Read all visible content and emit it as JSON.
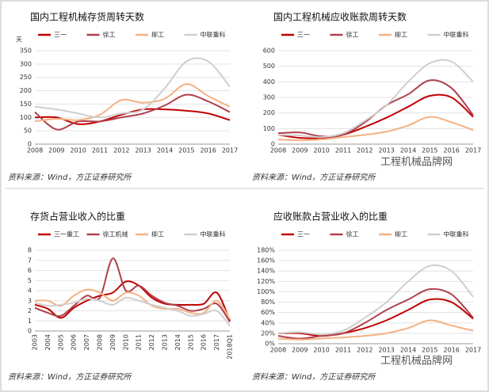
{
  "chart_data": [
    {
      "type": "line",
      "title": "国内工程机械存货周转天数",
      "y_label": "天",
      "categories": [
        "2008",
        "2009",
        "2010",
        "2011",
        "2012",
        "2013",
        "2014",
        "2015",
        "2016",
        "2017"
      ],
      "ylim": [
        0,
        350
      ],
      "yticks": [
        0,
        50,
        100,
        150,
        200,
        250,
        300,
        350
      ],
      "grid": true,
      "series": [
        {
          "name": "三一",
          "color": "#c00000",
          "values": [
            100,
            100,
            75,
            85,
            110,
            130,
            130,
            125,
            115,
            90
          ]
        },
        {
          "name": "徐工",
          "color": "#b0404c",
          "values": [
            120,
            55,
            85,
            85,
            100,
            115,
            145,
            185,
            160,
            120
          ]
        },
        {
          "name": "柳工",
          "color": "#f4b183",
          "values": [
            85,
            95,
            90,
            110,
            165,
            155,
            170,
            225,
            180,
            140
          ]
        },
        {
          "name": "中联重科",
          "color": "#d0cece",
          "values": [
            140,
            130,
            115,
            100,
            115,
            130,
            210,
            310,
            310,
            215
          ]
        }
      ]
    },
    {
      "type": "line",
      "title": "国内工程机械应收账款周转天数",
      "categories": [
        "2008",
        "2009",
        "2010",
        "2011",
        "2012",
        "2013",
        "2014",
        "2015",
        "2016",
        "2017"
      ],
      "ylim": [
        0,
        600
      ],
      "yticks": [
        0,
        100,
        200,
        300,
        400,
        500,
        600
      ],
      "grid": true,
      "series": [
        {
          "name": "三一",
          "color": "#c00000",
          "values": [
            60,
            40,
            40,
            60,
            110,
            170,
            240,
            310,
            300,
            175
          ]
        },
        {
          "name": "徐工",
          "color": "#b0404c",
          "values": [
            70,
            75,
            50,
            60,
            140,
            250,
            320,
            410,
            360,
            185
          ]
        },
        {
          "name": "柳工",
          "color": "#f4b183",
          "values": [
            30,
            25,
            30,
            45,
            60,
            80,
            120,
            175,
            140,
            90
          ]
        },
        {
          "name": "中联重科",
          "color": "#d0cece",
          "values": [
            60,
            55,
            45,
            70,
            150,
            250,
            400,
            520,
            530,
            400
          ]
        }
      ]
    },
    {
      "type": "line",
      "title": "存货占营业收入的比重",
      "rotate_x": true,
      "categories": [
        "2003",
        "2004",
        "2005",
        "2006",
        "2007",
        "2008",
        "2009",
        "2010",
        "2011",
        "2012",
        "2013",
        "2014",
        "2015",
        "2016",
        "2017",
        "2018Q1"
      ],
      "ylim": [
        0,
        8
      ],
      "yticks": [
        0,
        1,
        2,
        3,
        4,
        5,
        6,
        7,
        8
      ],
      "grid": true,
      "series": [
        {
          "name": "三一重工",
          "color": "#c00000",
          "values": [
            2.6,
            2.2,
            1.3,
            2.3,
            3.0,
            3.5,
            3.8,
            4.9,
            4.5,
            3.3,
            2.7,
            2.6,
            2.6,
            2.7,
            3.8,
            1.0
          ]
        },
        {
          "name": "徐工机械",
          "color": "#b0404c",
          "values": [
            2.3,
            1.8,
            1.5,
            2.5,
            3.5,
            3.3,
            7.2,
            4.0,
            4.5,
            3.5,
            2.8,
            2.5,
            2.0,
            2.2,
            2.7,
            0.9
          ]
        },
        {
          "name": "柳工",
          "color": "#f4b183",
          "values": [
            3.0,
            3.0,
            2.5,
            3.5,
            4.1,
            3.8,
            3.0,
            3.8,
            3.5,
            2.5,
            2.2,
            2.2,
            1.8,
            1.8,
            3.0,
            1.2
          ]
        },
        {
          "name": "中联重科",
          "color": "#d0cece",
          "values": [
            2.8,
            2.5,
            2.6,
            2.8,
            3.2,
            3.0,
            2.6,
            3.3,
            3.0,
            2.6,
            2.3,
            2.0,
            1.5,
            1.7,
            2.0,
            0.5
          ]
        }
      ]
    },
    {
      "type": "line",
      "title": "应收账款占营业收入的比重",
      "categories": [
        "2008",
        "2009",
        "2010",
        "2011",
        "2012",
        "2013",
        "2014",
        "2015",
        "2016",
        "2017"
      ],
      "ylim": [
        0,
        180
      ],
      "grid": true,
      "yticks": [
        {
          "value": 0,
          "label": "0%"
        },
        {
          "value": 20,
          "label": "20%"
        },
        {
          "value": 40,
          "label": "40%"
        },
        {
          "value": 60,
          "label": "60%"
        },
        {
          "value": 80,
          "label": "80%"
        },
        {
          "value": 100,
          "label": "100%"
        },
        {
          "value": 120,
          "label": "120%"
        },
        {
          "value": 140,
          "label": "140%"
        },
        {
          "value": 160,
          "label": "160%"
        },
        {
          "value": 180,
          "label": "180%"
        }
      ],
      "series": [
        {
          "name": "三一",
          "color": "#c00000",
          "values": [
            20,
            20,
            15,
            20,
            30,
            45,
            65,
            85,
            80,
            48
          ]
        },
        {
          "name": "徐工",
          "color": "#b0404c",
          "values": [
            15,
            10,
            15,
            20,
            40,
            65,
            85,
            105,
            95,
            50
          ]
        },
        {
          "name": "柳工",
          "color": "#f4b183",
          "values": [
            10,
            8,
            10,
            12,
            15,
            20,
            30,
            45,
            35,
            25
          ]
        },
        {
          "name": "中联重科",
          "color": "#d0cece",
          "values": [
            20,
            22,
            18,
            25,
            50,
            80,
            120,
            150,
            140,
            90
          ]
        }
      ]
    }
  ],
  "footer": {
    "source": "资料来源：Wind，方正证券研究所",
    "watermark": "工程机械品牌网"
  }
}
